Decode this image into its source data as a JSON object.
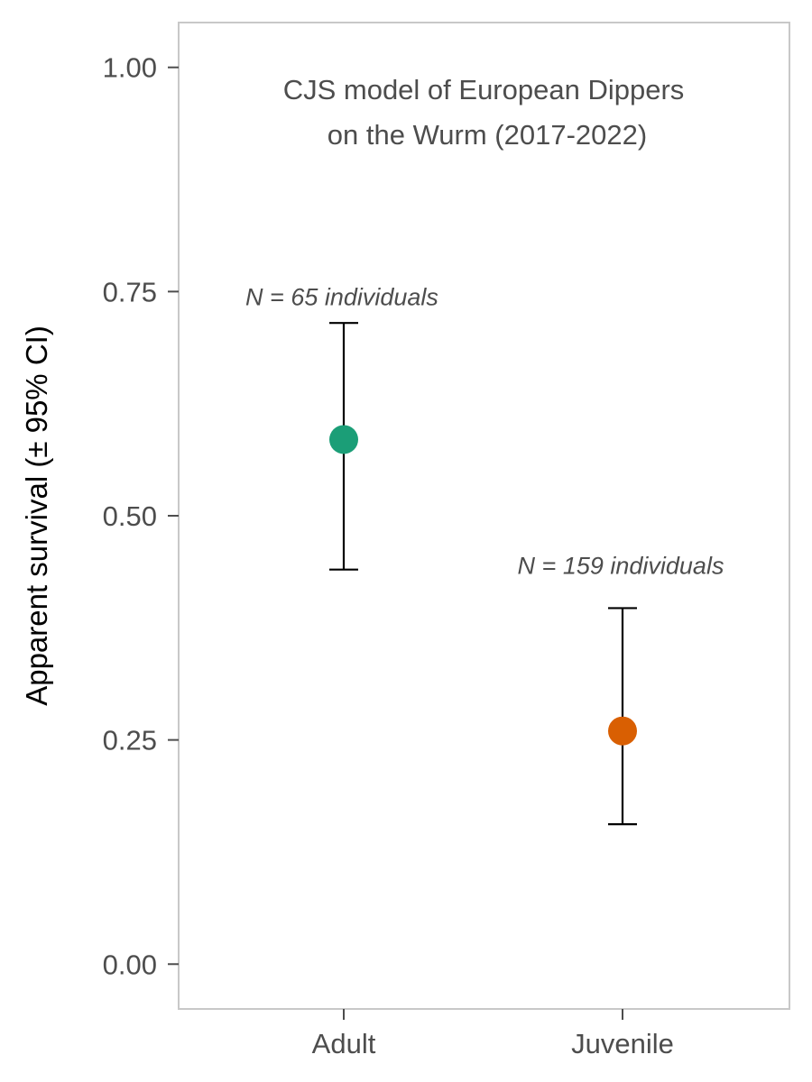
{
  "chart_data": {
    "type": "scatter",
    "title_lines": [
      "CJS model of European Dippers",
      "on the Wurm (2017-2022)"
    ],
    "xlabel": "",
    "ylabel": "Apparent survival (± 95% CI)",
    "categories": [
      "Adult",
      "Juvenile"
    ],
    "ylim": [
      -0.05,
      1.05
    ],
    "yticks": [
      0.0,
      0.25,
      0.5,
      0.75,
      1.0
    ],
    "ytick_labels": [
      "0.00",
      "0.25",
      "0.50",
      "0.75",
      "1.00"
    ],
    "grid": false,
    "points": [
      {
        "category": "Adult",
        "estimate": 0.585,
        "lower": 0.44,
        "upper": 0.715,
        "color": "#1b9e77",
        "annotation": "N = 65 individuals",
        "annotation_y": 0.745
      },
      {
        "category": "Juvenile",
        "estimate": 0.26,
        "lower": 0.156,
        "upper": 0.397,
        "color": "#d95f02",
        "annotation": "N = 159 individuals",
        "annotation_y": 0.445
      }
    ],
    "colors": {
      "panel_border": "#c8c8c8",
      "tick": "#4d4d4d",
      "errorbar": "#000000"
    }
  }
}
